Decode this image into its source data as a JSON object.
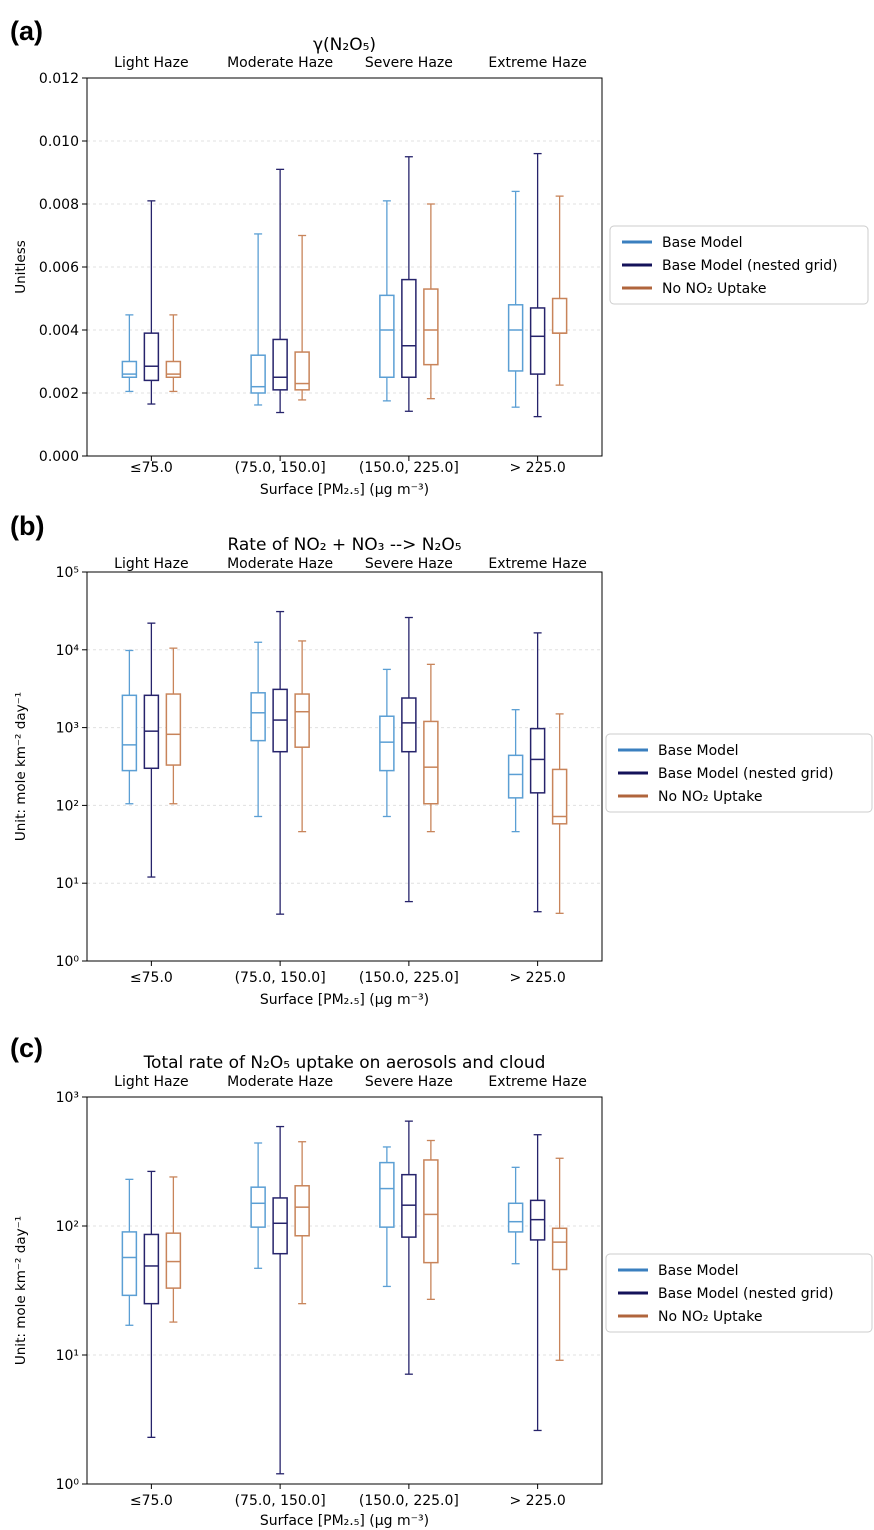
{
  "legend": {
    "entries": [
      "Base Model",
      "Base Model (nested grid)",
      "No NO₂ Uptake"
    ]
  },
  "colors": {
    "base": "#5b9fd4",
    "nested": "#26236b",
    "no_uptake": "#c8845a",
    "legend_base": "#3a7fbf",
    "legend_nested": "#14125a",
    "legend_no_uptake": "#b0653c",
    "grid": "#e0e0e0"
  },
  "chart_data": [
    {
      "panel": "(a)",
      "type": "box",
      "title": "γ(N₂O₅)",
      "xlabel": "Surface [PM₂.₅] (μg m⁻³)",
      "ylabel": "Unitless",
      "yscale": "linear",
      "ylim": [
        0,
        0.012
      ],
      "yticks": [
        0.0,
        0.002,
        0.004,
        0.006,
        0.008,
        0.01,
        0.012
      ],
      "ytick_labels": [
        "0.000",
        "0.002",
        "0.004",
        "0.006",
        "0.008",
        "0.010",
        "0.012"
      ],
      "categories": [
        "≤75.0",
        "(75.0, 150.0]",
        "(150.0, 225.0]",
        "> 225.0"
      ],
      "category_names": [
        "Light Haze",
        "Moderate Haze",
        "Severe Haze",
        "Extreme Haze"
      ],
      "grid": true,
      "legend_position": "right",
      "series": [
        {
          "name": "Base Model",
          "boxes": [
            {
              "whislo": 0.00205,
              "q1": 0.0025,
              "med": 0.0026,
              "q3": 0.003,
              "whishi": 0.00448
            },
            {
              "whislo": 0.00162,
              "q1": 0.002,
              "med": 0.0022,
              "q3": 0.0032,
              "whishi": 0.00705
            },
            {
              "whislo": 0.00175,
              "q1": 0.0025,
              "med": 0.004,
              "q3": 0.0051,
              "whishi": 0.0081
            },
            {
              "whislo": 0.00155,
              "q1": 0.0027,
              "med": 0.004,
              "q3": 0.0048,
              "whishi": 0.0084
            }
          ]
        },
        {
          "name": "Base Model (nested grid)",
          "boxes": [
            {
              "whislo": 0.00165,
              "q1": 0.0024,
              "med": 0.00285,
              "q3": 0.0039,
              "whishi": 0.0081
            },
            {
              "whislo": 0.00138,
              "q1": 0.0021,
              "med": 0.0025,
              "q3": 0.0037,
              "whishi": 0.0091
            },
            {
              "whislo": 0.00142,
              "q1": 0.0025,
              "med": 0.0035,
              "q3": 0.0056,
              "whishi": 0.0095
            },
            {
              "whislo": 0.00125,
              "q1": 0.0026,
              "med": 0.0038,
              "q3": 0.0047,
              "whishi": 0.0096
            }
          ]
        },
        {
          "name": "No NO₂ Uptake",
          "boxes": [
            {
              "whislo": 0.00205,
              "q1": 0.0025,
              "med": 0.0026,
              "q3": 0.003,
              "whishi": 0.00448
            },
            {
              "whislo": 0.00178,
              "q1": 0.0021,
              "med": 0.0023,
              "q3": 0.0033,
              "whishi": 0.007
            },
            {
              "whislo": 0.00182,
              "q1": 0.0029,
              "med": 0.004,
              "q3": 0.0053,
              "whishi": 0.008
            },
            {
              "whislo": 0.00225,
              "q1": 0.0039,
              "med": 0.0039,
              "q3": 0.005,
              "whishi": 0.00825
            }
          ]
        }
      ]
    },
    {
      "panel": "(b)",
      "type": "box",
      "title": "Rate of NO₂ + NO₃ --> N₂O₅",
      "xlabel": "Surface [PM₂.₅] (μg m⁻³)",
      "ylabel": "Unit: mole km⁻² day⁻¹",
      "yscale": "log",
      "ylim": [
        1,
        100000
      ],
      "yticks": [
        1,
        10,
        100,
        1000,
        10000,
        100000
      ],
      "ytick_labels": [
        "10⁰",
        "10¹",
        "10²",
        "10³",
        "10⁴",
        "10⁵"
      ],
      "categories": [
        "≤75.0",
        "(75.0, 150.0]",
        "(150.0, 225.0]",
        "> 225.0"
      ],
      "category_names": [
        "Light Haze",
        "Moderate Haze",
        "Severe Haze",
        "Extreme Haze"
      ],
      "grid": true,
      "legend_position": "right",
      "series": [
        {
          "name": "Base Model",
          "boxes": [
            {
              "whislo": 105,
              "q1": 280,
              "med": 600,
              "q3": 2600,
              "whishi": 9800
            },
            {
              "whislo": 72,
              "q1": 680,
              "med": 1550,
              "q3": 2800,
              "whishi": 12500
            },
            {
              "whislo": 72,
              "q1": 280,
              "med": 650,
              "q3": 1400,
              "whishi": 5600
            },
            {
              "whislo": 46,
              "q1": 125,
              "med": 250,
              "q3": 440,
              "whishi": 1700
            }
          ]
        },
        {
          "name": "Base Model (nested grid)",
          "boxes": [
            {
              "whislo": 12,
              "q1": 300,
              "med": 900,
              "q3": 2600,
              "whishi": 22000
            },
            {
              "whislo": 4,
              "q1": 490,
              "med": 1250,
              "q3": 3100,
              "whishi": 31000
            },
            {
              "whislo": 5.8,
              "q1": 490,
              "med": 1150,
              "q3": 2400,
              "whishi": 26000
            },
            {
              "whislo": 4.3,
              "q1": 145,
              "med": 390,
              "q3": 970,
              "whishi": 16500
            }
          ]
        },
        {
          "name": "No NO₂ Uptake",
          "boxes": [
            {
              "whislo": 105,
              "q1": 330,
              "med": 820,
              "q3": 2700,
              "whishi": 10500
            },
            {
              "whislo": 46,
              "q1": 560,
              "med": 1600,
              "q3": 2700,
              "whishi": 13000
            },
            {
              "whislo": 46,
              "q1": 105,
              "med": 310,
              "q3": 1200,
              "whishi": 6500
            },
            {
              "whislo": 4.1,
              "q1": 58,
              "med": 72,
              "q3": 290,
              "whishi": 1500
            }
          ]
        }
      ]
    },
    {
      "panel": "(c)",
      "type": "box",
      "title": "Total rate of N₂O₅ uptake on aerosols and cloud",
      "xlabel": "Surface [PM₂.₅] (μg m⁻³)",
      "ylabel": "Unit: mole km⁻² day⁻¹",
      "yscale": "log",
      "ylim": [
        1,
        1000
      ],
      "yticks": [
        1,
        10,
        100,
        1000
      ],
      "ytick_labels": [
        "10⁰",
        "10¹",
        "10²",
        "10³"
      ],
      "categories": [
        "≤75.0",
        "(75.0, 150.0]",
        "(150.0, 225.0]",
        "> 225.0"
      ],
      "category_names": [
        "Light Haze",
        "Moderate Haze",
        "Severe Haze",
        "Extreme Haze"
      ],
      "grid": true,
      "legend_position": "right",
      "series": [
        {
          "name": "Base Model",
          "boxes": [
            {
              "whislo": 17,
              "q1": 29,
              "med": 57,
              "q3": 90,
              "whishi": 230
            },
            {
              "whislo": 47,
              "q1": 98,
              "med": 150,
              "q3": 200,
              "whishi": 440
            },
            {
              "whislo": 34,
              "q1": 98,
              "med": 195,
              "q3": 310,
              "whishi": 410
            },
            {
              "whislo": 51,
              "q1": 90,
              "med": 108,
              "q3": 150,
              "whishi": 285
            }
          ]
        },
        {
          "name": "Base Model (nested grid)",
          "boxes": [
            {
              "whislo": 2.3,
              "q1": 25,
              "med": 49,
              "q3": 86,
              "whishi": 265
            },
            {
              "whislo": 1.2,
              "q1": 61,
              "med": 105,
              "q3": 165,
              "whishi": 590
            },
            {
              "whislo": 7.1,
              "q1": 82,
              "med": 145,
              "q3": 250,
              "whishi": 650
            },
            {
              "whislo": 2.6,
              "q1": 78,
              "med": 112,
              "q3": 158,
              "whishi": 510
            }
          ]
        },
        {
          "name": "No NO₂ Uptake",
          "boxes": [
            {
              "whislo": 18,
              "q1": 33,
              "med": 53,
              "q3": 88,
              "whishi": 240
            },
            {
              "whislo": 25,
              "q1": 84,
              "med": 140,
              "q3": 205,
              "whishi": 450
            },
            {
              "whislo": 27,
              "q1": 52,
              "med": 123,
              "q3": 325,
              "whishi": 460
            },
            {
              "whislo": 9.1,
              "q1": 46,
              "med": 75,
              "q3": 96,
              "whishi": 335
            }
          ]
        }
      ]
    }
  ]
}
